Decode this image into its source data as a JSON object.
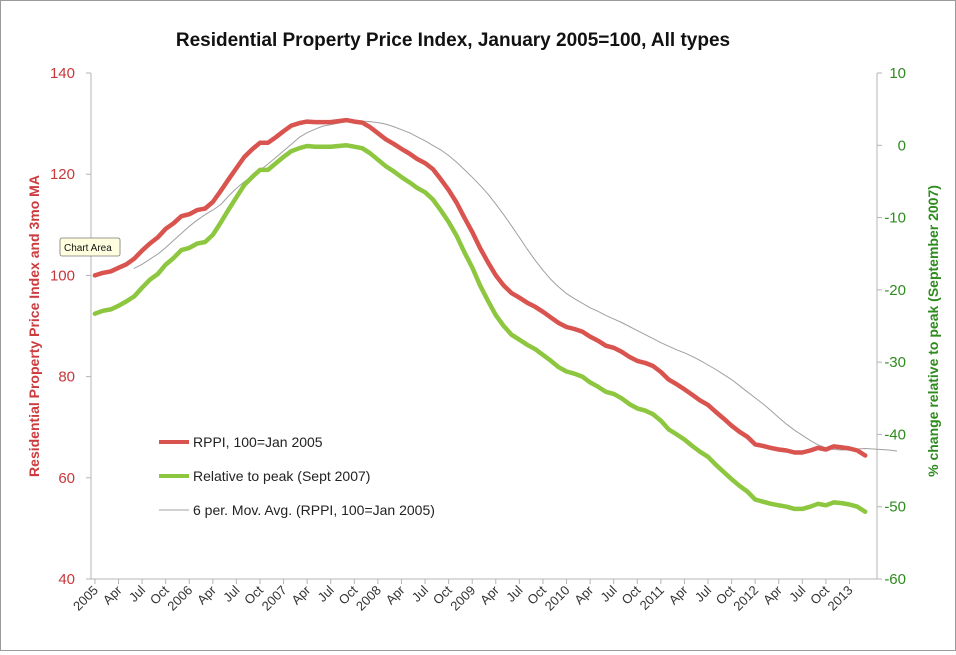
{
  "chart_data": {
    "type": "line",
    "title": "Residential Property Price Index, January 2005=100, All types",
    "y_left_label": "Residential Property Price Index and 3mo MA",
    "y_right_label": "% change relative to peak (September 2007)",
    "y_left_lim": [
      40,
      140
    ],
    "y_left_ticks": [
      "40",
      "60",
      "80",
      "100",
      "120",
      "140"
    ],
    "y_right_lim": [
      -60,
      10
    ],
    "y_right_ticks": [
      "-60",
      "-50",
      "-40",
      "-30",
      "-20",
      "-10",
      "0",
      "10"
    ],
    "x_labels": [
      "2005",
      "Apr",
      "Jul",
      "Oct",
      "2006",
      "Apr",
      "Jul",
      "Oct",
      "2007",
      "Apr",
      "Jul",
      "Oct",
      "2008",
      "Apr",
      "Jul",
      "Oct",
      "2009",
      "Apr",
      "Jul",
      "Oct",
      "2010",
      "Apr",
      "Jul",
      "Oct",
      "2011",
      "Apr",
      "Jul",
      "Oct",
      "2012",
      "Apr",
      "Jul",
      "Oct",
      "2013"
    ],
    "x_period_count": 100,
    "x_label_interval": 3,
    "tooltip": "Chart Area",
    "series": [
      {
        "name": "RPPI, 100=Jan 2005",
        "axis": "left",
        "color": "#d9534f",
        "values": [
          100.0,
          100.5,
          100.8,
          101.5,
          102.2,
          103.3,
          104.9,
          106.3,
          107.5,
          109.2,
          110.3,
          111.7,
          112.1,
          112.9,
          113.2,
          114.5,
          116.7,
          119.0,
          121.2,
          123.4,
          124.9,
          126.2,
          126.2,
          127.3,
          128.5,
          129.6,
          130.1,
          130.4,
          130.3,
          130.3,
          130.3,
          130.5,
          130.7,
          130.4,
          130.2,
          129.3,
          128.1,
          126.9,
          126.0,
          125.0,
          124.1,
          123.0,
          122.2,
          121.0,
          119.0,
          116.9,
          114.4,
          111.4,
          108.6,
          105.4,
          102.6,
          100.0,
          98.0,
          96.5,
          95.6,
          94.6,
          93.8,
          92.8,
          91.7,
          90.6,
          89.8,
          89.4,
          88.9,
          87.9,
          87.1,
          86.1,
          85.7,
          84.9,
          83.9,
          83.1,
          82.7,
          82.1,
          80.9,
          79.4,
          78.5,
          77.5,
          76.4,
          75.3,
          74.4,
          73.0,
          71.7,
          70.3,
          69.1,
          68.1,
          66.6,
          66.3,
          65.9,
          65.6,
          65.4,
          65.0,
          65.0,
          65.4,
          65.9,
          65.6,
          66.2,
          66.0,
          65.8,
          65.4,
          64.4
        ],
        "values_note": "monthly from Jan 2005"
      },
      {
        "name": "Relative to peak (Sept 2007)",
        "axis": "right",
        "color": "#8dc63f",
        "values": [
          -23.3,
          -22.9,
          -22.7,
          -22.2,
          -21.6,
          -20.9,
          -19.7,
          -18.6,
          -17.8,
          -16.5,
          -15.6,
          -14.5,
          -14.2,
          -13.6,
          -13.4,
          -12.4,
          -10.7,
          -8.9,
          -7.2,
          -5.5,
          -4.4,
          -3.4,
          -3.4,
          -2.5,
          -1.6,
          -0.8,
          -0.4,
          -0.1,
          -0.2,
          -0.2,
          -0.2,
          -0.1,
          0.0,
          -0.2,
          -0.4,
          -1.1,
          -2.0,
          -2.9,
          -3.6,
          -4.4,
          -5.1,
          -5.9,
          -6.5,
          -7.5,
          -9.0,
          -10.6,
          -12.5,
          -14.8,
          -16.9,
          -19.4,
          -21.5,
          -23.5,
          -25.0,
          -26.2,
          -26.9,
          -27.6,
          -28.2,
          -29.0,
          -29.8,
          -30.7,
          -31.3,
          -31.6,
          -32.0,
          -32.8,
          -33.4,
          -34.1,
          -34.4,
          -35.0,
          -35.8,
          -36.4,
          -36.7,
          -37.2,
          -38.1,
          -39.3,
          -40.0,
          -40.7,
          -41.6,
          -42.4,
          -43.1,
          -44.2,
          -45.2,
          -46.2,
          -47.1,
          -47.9,
          -49.0,
          -49.3,
          -49.6,
          -49.8,
          -50.0,
          -50.3,
          -50.3,
          -50.0,
          -49.6,
          -49.8,
          -49.4,
          -49.5,
          -49.7,
          -50.0,
          -50.7
        ]
      },
      {
        "name": "6 per. Mov. Avg. (RPPI, 100=Jan 2005)",
        "axis": "left",
        "color": "#a0a0a0",
        "start_index": 5,
        "values": [
          101.4,
          102.2,
          103.2,
          104.2,
          105.5,
          106.9,
          108.3,
          109.7,
          110.9,
          112.0,
          112.9,
          114.0,
          115.7,
          117.2,
          118.5,
          119.6,
          120.8,
          122.0,
          123.3,
          124.6,
          125.9,
          127.3,
          128.2,
          128.9,
          129.5,
          129.8,
          130.1,
          130.4,
          130.5,
          130.5,
          130.4,
          130.2,
          129.9,
          129.4,
          128.8,
          128.2,
          127.4,
          126.6,
          125.7,
          124.8,
          123.7,
          122.4,
          120.9,
          119.4,
          117.8,
          116.1,
          114.1,
          112.0,
          109.8,
          107.5,
          105.2,
          103.0,
          101.0,
          99.2,
          97.7,
          96.4,
          95.4,
          94.5,
          93.6,
          92.9,
          92.1,
          91.4,
          90.7,
          89.9,
          89.1,
          88.3,
          87.5,
          86.7,
          86.0,
          85.3,
          84.7,
          84.0,
          83.2,
          82.3,
          81.4,
          80.4,
          79.4,
          78.2,
          77.0,
          75.8,
          74.6,
          73.3,
          71.9,
          70.6,
          69.4,
          68.4,
          67.4,
          66.5,
          65.9,
          65.6,
          65.5,
          65.6,
          65.7,
          65.8,
          65.7,
          65.6,
          65.5,
          65.3
        ],
        "values_note": "trailing moving average, flat tail to Mar 2013"
      }
    ],
    "legend": [
      {
        "label": "RPPI, 100=Jan 2005",
        "color": "#d9534f"
      },
      {
        "label": "Relative to peak (Sept 2007)",
        "color": "#8dc63f"
      },
      {
        "label": "6 per. Mov. Avg. (RPPI, 100=Jan 2005)",
        "color": "#a0a0a0"
      }
    ]
  }
}
